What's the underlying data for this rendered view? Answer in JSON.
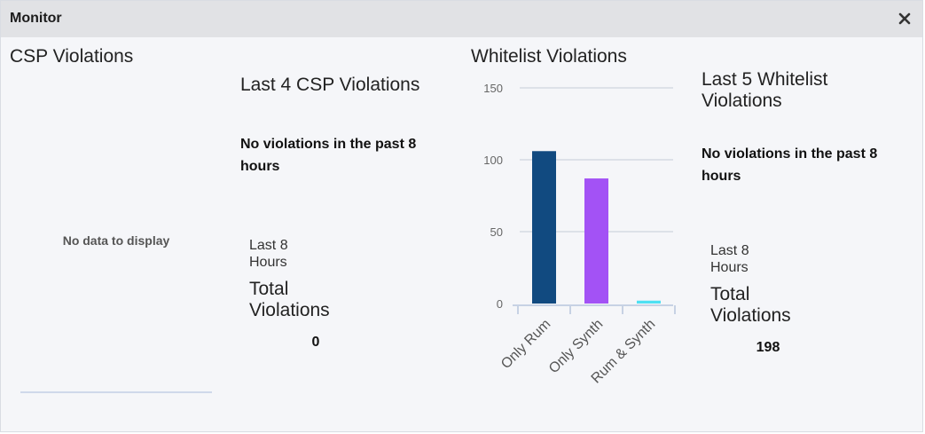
{
  "window": {
    "title": "Monitor",
    "close_icon": "close-icon"
  },
  "csp": {
    "heading": "CSP Violations",
    "empty_message": "No data to display",
    "recent_title": "Last 4 CSP Violations",
    "recent_message": "No violations in the past 8 hours",
    "period_label": "Last 8 Hours",
    "total_label": "Total Violations",
    "total_value": "0"
  },
  "whitelist": {
    "heading": "Whitelist Violations",
    "recent_title": "Last 5 Whitelist Violations",
    "recent_message": "No violations in the past 8 hours",
    "period_label": "Last 8 Hours",
    "total_label": "Total Violations",
    "total_value": "198"
  },
  "chart_data": {
    "type": "bar",
    "title": "",
    "categories": [
      "Only Rum",
      "Only Synth",
      "Rum & Synth"
    ],
    "values": [
      106,
      87,
      2
    ],
    "colors": [
      "#114a80",
      "#a352f5",
      "#4ee0f2"
    ],
    "ylim": [
      0,
      150
    ],
    "yticks": [
      0,
      50,
      100,
      150
    ],
    "grid": true
  }
}
